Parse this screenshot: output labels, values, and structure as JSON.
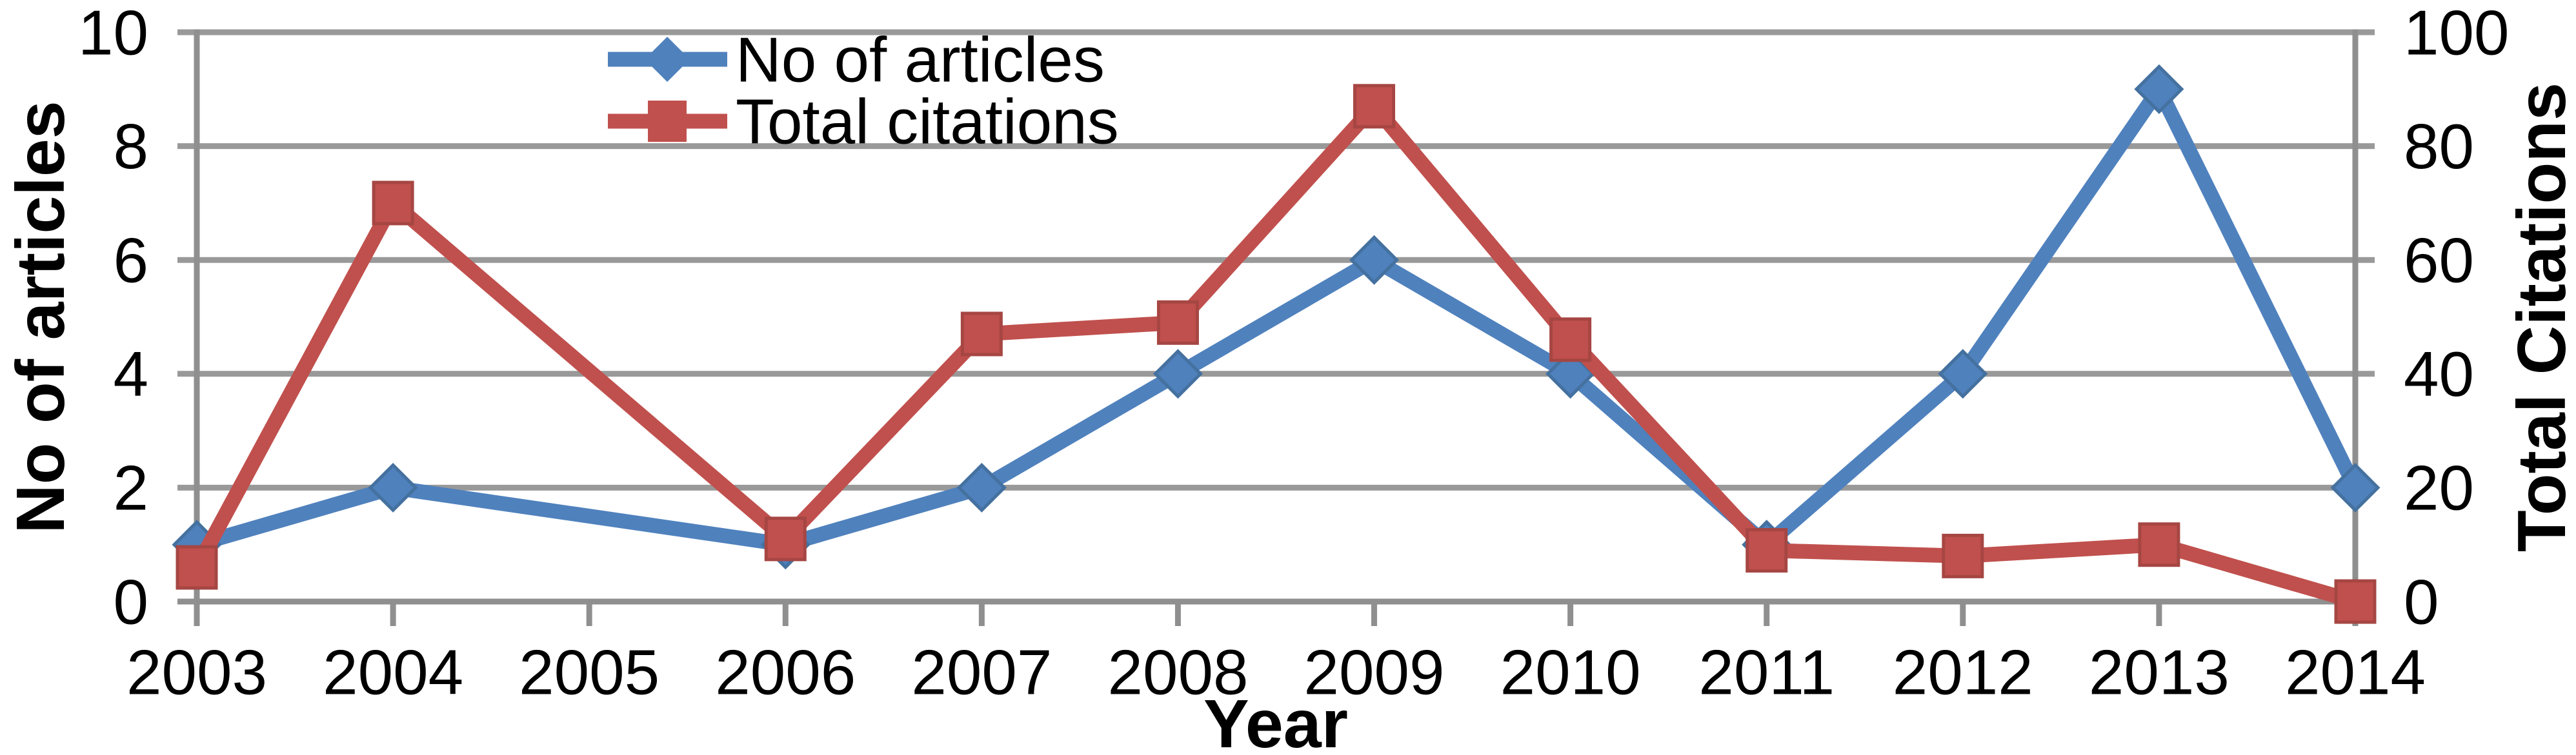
{
  "chart_data": {
    "type": "line",
    "title": "",
    "categories": [
      "2003",
      "2004",
      "2005",
      "2006",
      "2007",
      "2008",
      "2009",
      "2010",
      "2011",
      "2012",
      "2013",
      "2014"
    ],
    "series": [
      {
        "id": "articles",
        "name": "No of articles",
        "axis": "left",
        "marker": "diamond",
        "color": "#4F81BD",
        "marker_edge_color": "#44719F",
        "values": [
          1,
          2,
          null,
          1,
          2,
          4,
          6,
          4,
          1,
          4,
          9,
          2
        ]
      },
      {
        "id": "citations",
        "name": "Total citations",
        "axis": "right",
        "marker": "square",
        "color": "#C0504D",
        "marker_edge_color": "#A64643",
        "values": [
          6,
          70,
          null,
          11,
          47,
          49,
          87,
          46,
          9,
          8,
          10,
          0
        ]
      }
    ],
    "x_axis": {
      "title": "Year"
    },
    "left_axis": {
      "title": "No of articles",
      "ticks": [
        0,
        2,
        4,
        6,
        8,
        10
      ],
      "range": [
        0,
        10
      ]
    },
    "right_axis": {
      "title": "Total Citations",
      "ticks": [
        0,
        20,
        40,
        60,
        80,
        100
      ],
      "range": [
        0,
        100
      ]
    },
    "legend": {
      "position": "top-center",
      "entries": [
        "No of articles",
        "Total citations"
      ]
    },
    "grid": true,
    "colors": {
      "gridline": "#999999",
      "axis_line": "#8F8F8F",
      "text": "#000000",
      "background": "#FFFFFF"
    }
  }
}
